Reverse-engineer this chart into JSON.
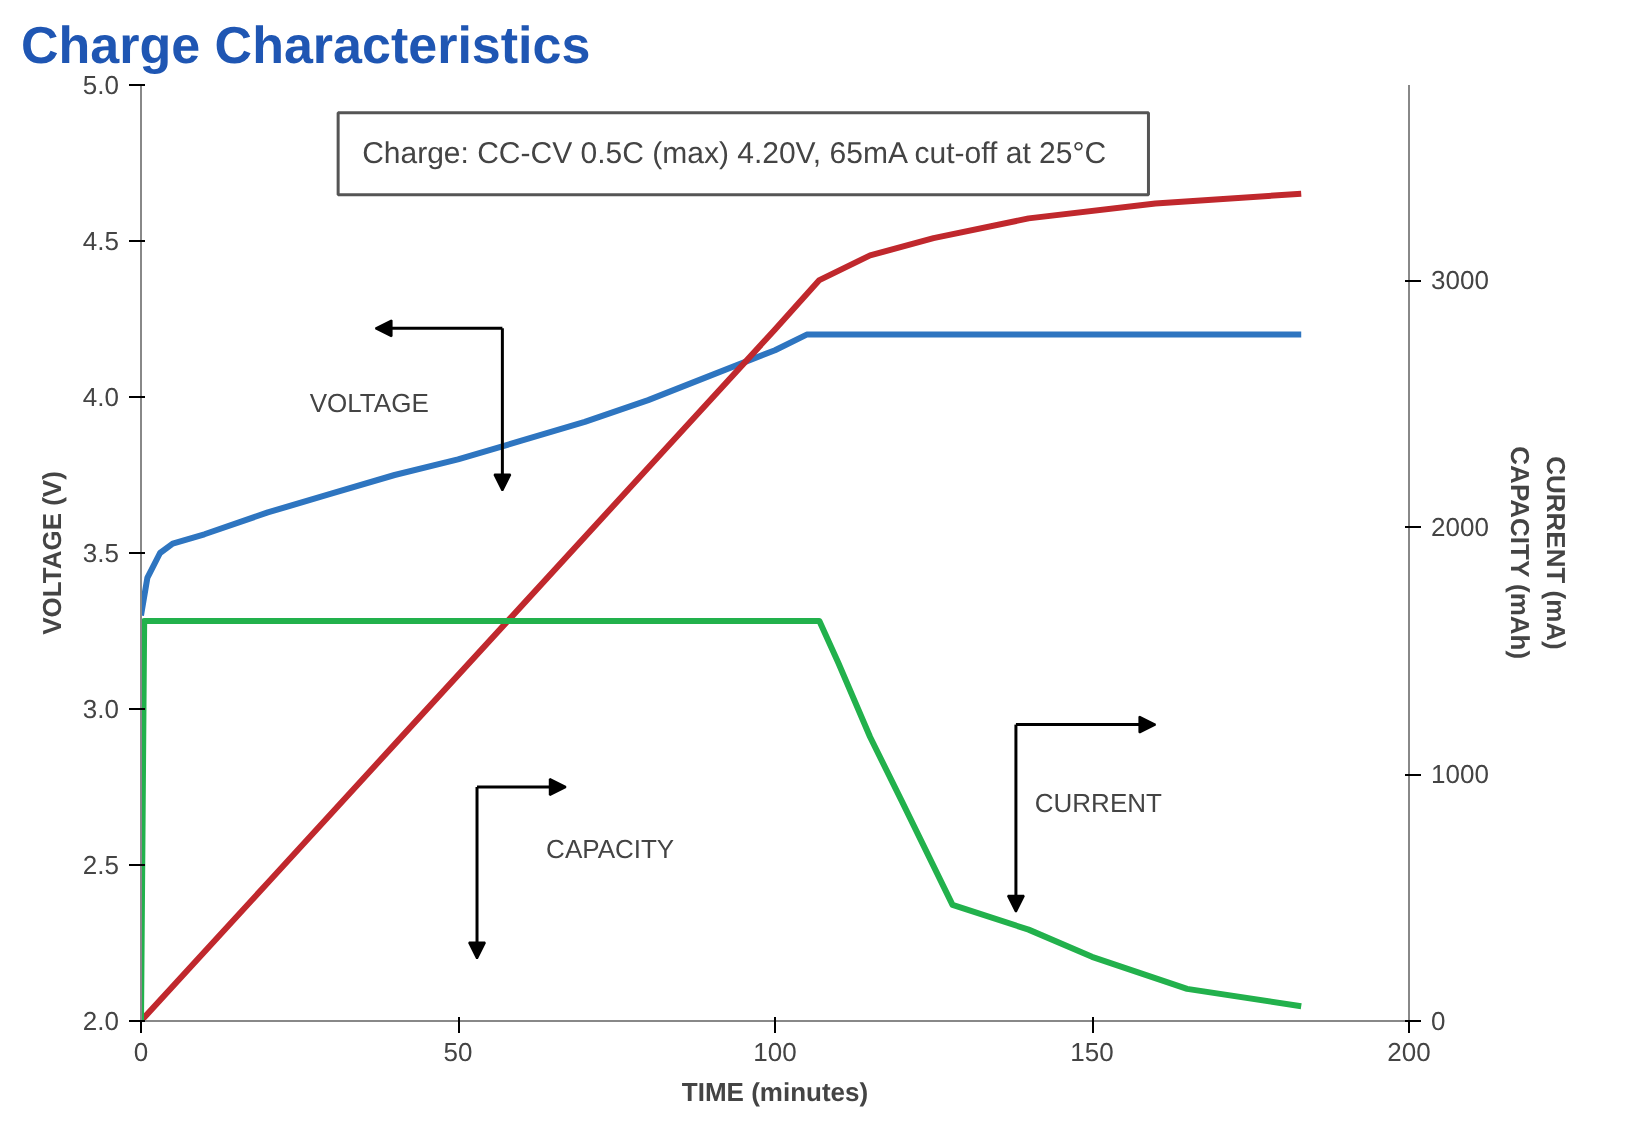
{
  "chart_data": {
    "type": "line",
    "title": "Charge Characteristics",
    "xlabel": "TIME (minutes)",
    "ylabel": "VOLTAGE (V)",
    "y2label": "CURRENT (mA)\nCAPACITY (mAh)",
    "xlim": [
      0,
      200
    ],
    "xticks": [
      0,
      50,
      100,
      150,
      200
    ],
    "ylim": [
      2.0,
      5.0
    ],
    "yticks": [
      {
        "value": 2,
        "label": "2.0"
      },
      2.5,
      {
        "value": 3,
        "label": "3.0"
      },
      3.5,
      {
        "value": 4,
        "label": "4.0"
      },
      4.5,
      {
        "value": 5,
        "label": "5.0"
      }
    ],
    "y2lim": [
      0,
      3790
    ],
    "y2ticks": [
      0,
      1000,
      2000,
      3000
    ],
    "grid": false,
    "marker": "none",
    "line_style": "solid",
    "series": [
      {
        "color": "#2e75c0",
        "x": [
          0,
          1,
          3,
          5,
          10,
          20,
          30,
          40,
          50,
          60,
          70,
          80,
          90,
          100,
          105,
          110,
          120,
          140,
          160,
          183
        ],
        "values": [
          3.3,
          3.42,
          3.5,
          3.53,
          3.56,
          3.63,
          3.69,
          3.75,
          3.8,
          3.86,
          3.92,
          3.99,
          4.07,
          4.15,
          4.2,
          4.2,
          4.2,
          4.2,
          4.2,
          4.2
        ]
      },
      {
        "color": "#c0282d",
        "axis": "y2",
        "x": [
          0,
          20,
          40,
          60,
          80,
          100,
          107,
          115,
          125,
          140,
          160,
          183
        ],
        "values": [
          0,
          560,
          1120,
          1680,
          2240,
          2800,
          3000,
          3100,
          3170,
          3250,
          3310,
          3350
        ]
      },
      {
        "color": "#22b14c",
        "axis": "y2",
        "x": [
          0,
          0.5,
          107,
          110,
          115,
          120,
          128,
          140,
          150,
          165,
          183
        ],
        "values": [
          0,
          1620,
          1620,
          1450,
          1150,
          890,
          470,
          370,
          260,
          130,
          60
        ]
      }
    ],
    "annotations": [
      "Charge:   CC-CV 0.5C (max) 4.20V, 65mA cut-off at 25°C",
      "VOLTAGE",
      "CAPACITY",
      "CURRENT"
    ]
  }
}
